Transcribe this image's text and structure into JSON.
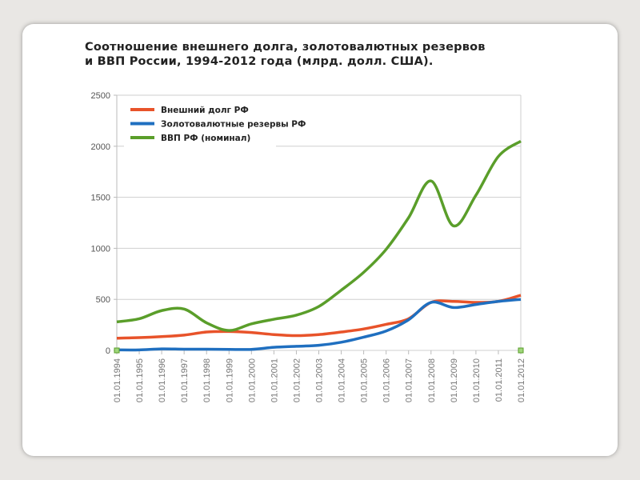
{
  "chart_data": {
    "type": "line",
    "title_line1": "Соотношение внешнего долга, золотовалютных резервов",
    "title_line2": "и ВВП России, 1994-2012 года (млрд. долл. США).",
    "xlabel": "",
    "ylabel": "",
    "ylim": [
      0,
      2500
    ],
    "yticks": [
      "0",
      "500",
      "1000",
      "1500",
      "2000",
      "2500"
    ],
    "grid": true,
    "legend_position": "top-left",
    "categories": [
      "01.01.1994",
      "01.01.1995",
      "01.01.1996",
      "01.01.1997",
      "01.01.1998",
      "01.01.1999",
      "01.01.2000",
      "01.01.2001",
      "01.01.2002",
      "01.01.2003",
      "01.01.2004",
      "01.01.2005",
      "01.01.2006",
      "01.01.2007",
      "01.01.2008",
      "01.01.2009",
      "01.01.2010",
      "01.01.2011",
      "01.01.2012"
    ],
    "series": [
      {
        "name": "Внешний долг РФ",
        "color": "#e8532a",
        "values": [
          120,
          125,
          135,
          150,
          180,
          185,
          175,
          155,
          145,
          155,
          180,
          210,
          255,
          310,
          470,
          480,
          470,
          480,
          540
        ]
      },
      {
        "name": "Золотовалютные резервы РФ",
        "color": "#1f6fc0",
        "values": [
          5,
          5,
          15,
          12,
          12,
          10,
          10,
          30,
          40,
          50,
          80,
          130,
          190,
          300,
          470,
          420,
          450,
          480,
          500
        ]
      },
      {
        "name": "ВВП РФ (номинал)",
        "color": "#5a9e2a",
        "values": [
          280,
          310,
          390,
          405,
          270,
          195,
          260,
          305,
          345,
          430,
          590,
          765,
          990,
          1300,
          1660,
          1220,
          1520,
          1900,
          2050
        ]
      }
    ]
  }
}
